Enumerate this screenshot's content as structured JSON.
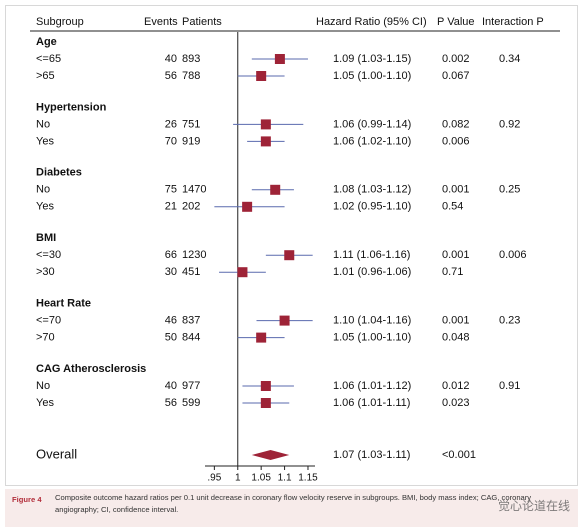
{
  "chart_data": {
    "type": "forest",
    "headers": [
      "Subgroup",
      "Events",
      "Patients",
      "Hazard Ratio (95% CI)",
      "P Value",
      "Interaction P"
    ],
    "groups": [
      {
        "name": "Age",
        "interaction_p": 0.34,
        "rows": [
          {
            "label": "<=65",
            "events": 40,
            "patients": 893,
            "hr": 1.09,
            "ci_low": 1.03,
            "ci_high": 1.15,
            "hr_label": "1.09 (1.03-1.15)",
            "p": 0.002
          },
          {
            "label": ">65",
            "events": 56,
            "patients": 788,
            "hr": 1.05,
            "ci_low": 1.0,
            "ci_high": 1.1,
            "hr_label": "1.05 (1.00-1.10)",
            "p": 0.067
          }
        ]
      },
      {
        "name": "Hypertension",
        "interaction_p": 0.92,
        "rows": [
          {
            "label": "No",
            "events": 26,
            "patients": 751,
            "hr": 1.06,
            "ci_low": 0.99,
            "ci_high": 1.14,
            "hr_label": "1.06 (0.99-1.14)",
            "p": 0.082
          },
          {
            "label": "Yes",
            "events": 70,
            "patients": 919,
            "hr": 1.06,
            "ci_low": 1.02,
            "ci_high": 1.1,
            "hr_label": "1.06 (1.02-1.10)",
            "p": 0.006
          }
        ]
      },
      {
        "name": "Diabetes",
        "interaction_p": 0.25,
        "rows": [
          {
            "label": "No",
            "events": 75,
            "patients": 1470,
            "hr": 1.08,
            "ci_low": 1.03,
            "ci_high": 1.12,
            "hr_label": "1.08 (1.03-1.12)",
            "p": 0.001
          },
          {
            "label": "Yes",
            "events": 21,
            "patients": 202,
            "hr": 1.02,
            "ci_low": 0.95,
            "ci_high": 1.1,
            "hr_label": "1.02 (0.95-1.10)",
            "p": 0.54
          }
        ]
      },
      {
        "name": "BMI",
        "interaction_p": 0.006,
        "rows": [
          {
            "label": "<=30",
            "events": 66,
            "patients": 1230,
            "hr": 1.11,
            "ci_low": 1.06,
            "ci_high": 1.16,
            "hr_label": "1.11 (1.06-1.16)",
            "p": 0.001
          },
          {
            "label": ">30",
            "events": 30,
            "patients": 451,
            "hr": 1.01,
            "ci_low": 0.96,
            "ci_high": 1.06,
            "hr_label": "1.01 (0.96-1.06)",
            "p": 0.71
          }
        ]
      },
      {
        "name": "Heart Rate",
        "interaction_p": 0.23,
        "rows": [
          {
            "label": "<=70",
            "events": 46,
            "patients": 837,
            "hr": 1.1,
            "ci_low": 1.04,
            "ci_high": 1.16,
            "hr_label": "1.10 (1.04-1.16)",
            "p": 0.001
          },
          {
            "label": ">70",
            "events": 50,
            "patients": 844,
            "hr": 1.05,
            "ci_low": 1.0,
            "ci_high": 1.1,
            "hr_label": "1.05 (1.00-1.10)",
            "p": 0.048
          }
        ]
      },
      {
        "name": "CAG Atherosclerosis",
        "interaction_p": 0.91,
        "rows": [
          {
            "label": "No",
            "events": 40,
            "patients": 977,
            "hr": 1.06,
            "ci_low": 1.01,
            "ci_high": 1.12,
            "hr_label": "1.06 (1.01-1.12)",
            "p": 0.012
          },
          {
            "label": "Yes",
            "events": 56,
            "patients": 599,
            "hr": 1.06,
            "ci_low": 1.01,
            "ci_high": 1.11,
            "hr_label": "1.06 (1.01-1.11)",
            "p": 0.023
          }
        ]
      }
    ],
    "overall": {
      "label": "Overall",
      "hr": 1.07,
      "ci_low": 1.03,
      "ci_high": 1.11,
      "hr_label": "1.07 (1.03-1.11)",
      "p": "<0.001"
    },
    "xlim": [
      0.93,
      1.165
    ],
    "xticks": [
      {
        "value": 0.95,
        "label": ".95"
      },
      1,
      1.05,
      1.1,
      1.15
    ],
    "marker_color": "#9e2337",
    "ci_color": "#5a6aae",
    "caption_label": "Figure 4",
    "caption": "Composite outcome hazard ratios per 0.1 unit decrease in coronary flow velocity reserve in subgroups. BMI, body mass index; CAG, coronary angiography; CI, confidence interval.",
    "watermark": "觉心论道在线"
  }
}
